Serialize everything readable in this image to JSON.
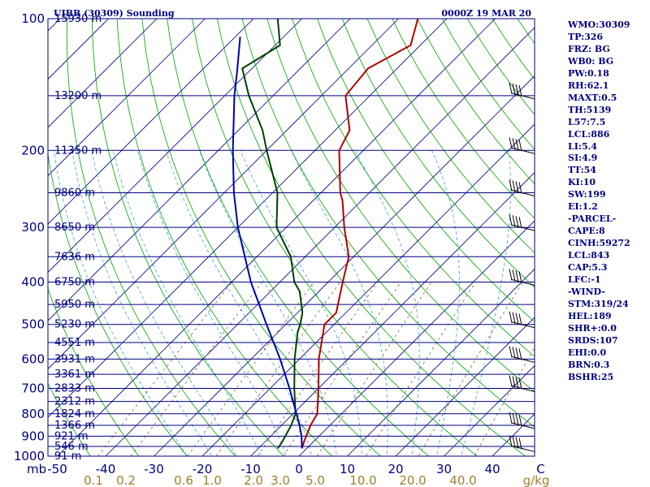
{
  "header": {
    "station_title": "UIBB (30309) Sounding",
    "datetime": "0000Z 19 MAR 20"
  },
  "side_panel": {
    "lines": [
      "WMO:30309",
      "TP:326",
      "FRZ: BG",
      "WB0: BG",
      "PW:0.18",
      "RH:62.1",
      "MAXT:0.5",
      "TH:5139",
      "L57:7.5",
      "LCL:886",
      "LI:5.4",
      "SI:4.9",
      "TT:54",
      "KI:10",
      "SW:199",
      "EI:1.2",
      "-PARCEL-",
      "CAPE:8",
      "CINH:59272",
      "LCL:843",
      "CAP:5.3",
      "LFC:-1",
      "-WIND-",
      "STM:319/24",
      "HEL:189",
      "SHR+:0.0",
      "SRDS:107",
      "EHI:0.0",
      "BRN:0.3",
      "BSHR:25"
    ]
  },
  "colors": {
    "isobar": "#000080",
    "isotherm": "#000080",
    "dry_adiabat": "#00a000",
    "moist_adiabat": "#40a0d0",
    "mixing_ratio": "#806040",
    "temperature": "#b00000",
    "dewpoint": "#004000",
    "parcel": "#0000b0",
    "text": "#000080",
    "mixing_ratio_text": "#a08030"
  },
  "chart_data": {
    "type": "line",
    "title": "UIBB (30309) Sounding",
    "subtitle": "0000Z 19 MAR 20",
    "y_axis_unit": "mb",
    "y_scale": "log-pressure",
    "ylim": [
      1000,
      100
    ],
    "pressure_labels": [
      100,
      200,
      300,
      400,
      500,
      600,
      700,
      800,
      900,
      1000
    ],
    "height_labels": [
      {
        "p": 100,
        "label": "15930 m"
      },
      {
        "p": 150,
        "label": "13200 m"
      },
      {
        "p": 200,
        "label": "11350 m"
      },
      {
        "p": 250,
        "label": "9860 m"
      },
      {
        "p": 300,
        "label": "8650 m"
      },
      {
        "p": 350,
        "label": "7636 m"
      },
      {
        "p": 400,
        "label": "6750 m"
      },
      {
        "p": 450,
        "label": "5950 m"
      },
      {
        "p": 500,
        "label": "5230 m"
      },
      {
        "p": 550,
        "label": "4551 m"
      },
      {
        "p": 600,
        "label": "3931 m"
      },
      {
        "p": 650,
        "label": "3361 m"
      },
      {
        "p": 700,
        "label": "2833 m"
      },
      {
        "p": 750,
        "label": "2312 m"
      },
      {
        "p": 800,
        "label": "1824 m"
      },
      {
        "p": 850,
        "label": "1366 m"
      },
      {
        "p": 900,
        "label": "921 m"
      },
      {
        "p": 950,
        "label": "546 m"
      },
      {
        "p": 1000,
        "label": "91 m"
      }
    ],
    "temperature_ticks": [
      -50,
      -40,
      -30,
      -20,
      -10,
      0,
      10,
      20,
      30,
      40
    ],
    "temperature_tick_labels": [
      "-50",
      "-40",
      "-30",
      "-20",
      "-10",
      "0",
      "10",
      "20",
      "30",
      "40",
      "C"
    ],
    "mixing_ratio_ticks": [
      0.1,
      0.2,
      0.6,
      1.0,
      2.0,
      3.0,
      5.0,
      10.0,
      20.0,
      40.0
    ],
    "mixing_ratio_tick_labels": [
      "0.1",
      "0.2",
      "0.6",
      "1.0",
      "2.0",
      "3.0",
      "5.0",
      "10.0",
      "20.0",
      "40.0"
    ],
    "mixing_ratio_unit": "g/kg",
    "series": [
      {
        "key": "temperature",
        "points": [
          [
            960,
            -1.0
          ],
          [
            925,
            -2.0
          ],
          [
            850,
            -4.0
          ],
          [
            800,
            -5.0
          ],
          [
            700,
            -10.0
          ],
          [
            600,
            -16.0
          ],
          [
            500,
            -22.0
          ],
          [
            470,
            -22.0
          ],
          [
            400,
            -27.0
          ],
          [
            350,
            -31.0
          ],
          [
            300,
            -38.0
          ],
          [
            260,
            -44.0
          ],
          [
            250,
            -46.0
          ],
          [
            200,
            -55.0
          ],
          [
            180,
            -57.0
          ],
          [
            150,
            -65.0
          ],
          [
            130,
            -66.0
          ],
          [
            115,
            -62.0
          ],
          [
            100,
            -66.0
          ]
        ]
      },
      {
        "key": "dewpoint",
        "points": [
          [
            960,
            -6.0
          ],
          [
            925,
            -6.5
          ],
          [
            850,
            -8.0
          ],
          [
            800,
            -9.5
          ],
          [
            700,
            -15.0
          ],
          [
            600,
            -21.0
          ],
          [
            520,
            -26.0
          ],
          [
            500,
            -27.0
          ],
          [
            470,
            -29.0
          ],
          [
            420,
            -34.0
          ],
          [
            400,
            -37.0
          ],
          [
            350,
            -43.0
          ],
          [
            300,
            -52.0
          ],
          [
            250,
            -59.0
          ],
          [
            200,
            -70.0
          ],
          [
            180,
            -75.0
          ],
          [
            150,
            -85.0
          ],
          [
            130,
            -92.0
          ],
          [
            115,
            -89.0
          ],
          [
            100,
            -95.0
          ]
        ]
      },
      {
        "key": "parcel",
        "points": [
          [
            960,
            -1.0
          ],
          [
            900,
            -3.6
          ],
          [
            850,
            -6.3
          ],
          [
            800,
            -9.3
          ],
          [
            700,
            -16.0
          ],
          [
            600,
            -24.0
          ],
          [
            500,
            -34.0
          ],
          [
            400,
            -46.0
          ],
          [
            300,
            -60.0
          ],
          [
            250,
            -68.0
          ],
          [
            200,
            -77.0
          ],
          [
            150,
            -88.0
          ],
          [
            130,
            -93.0
          ],
          [
            110,
            -99.0
          ]
        ]
      }
    ],
    "wind_barbs_pressure": [
      960,
      850,
      700,
      600,
      500,
      400,
      300,
      250,
      200,
      150
    ],
    "grid": true
  }
}
